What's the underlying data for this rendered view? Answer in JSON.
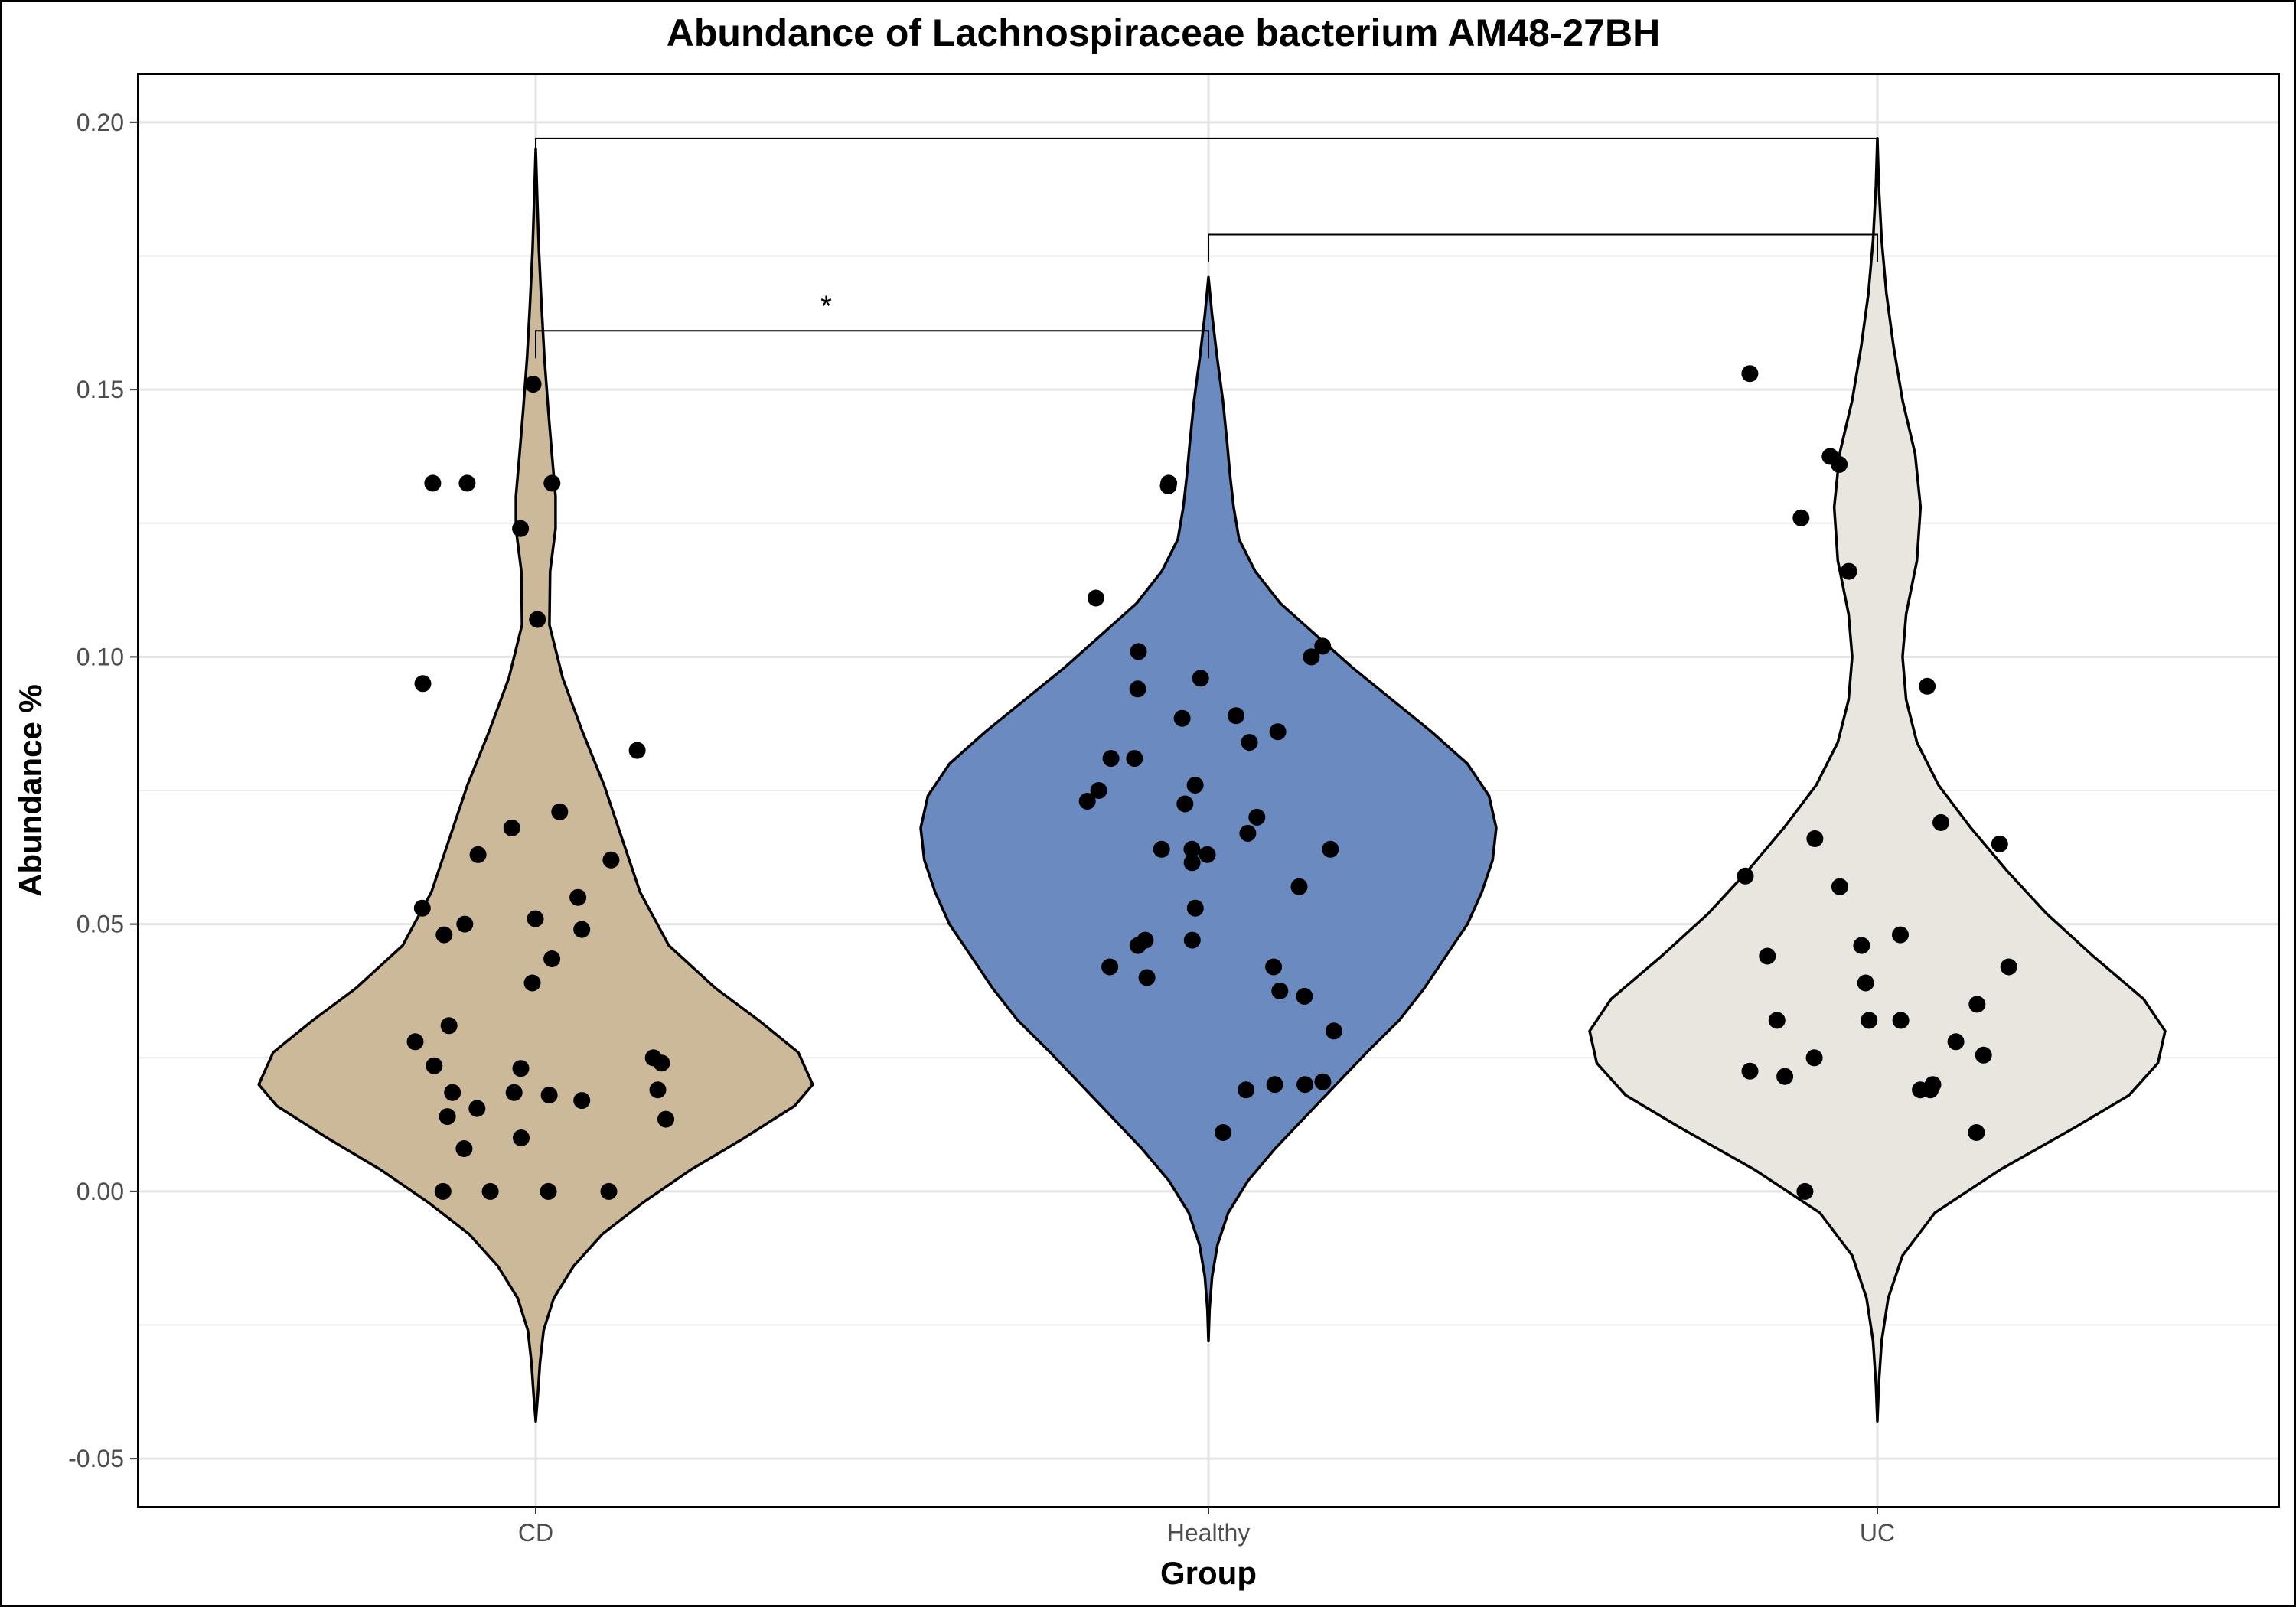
{
  "chart_data": {
    "type": "violin",
    "title": "Abundance of Lachnospiraceae bacterium AM48-27BH",
    "xlabel": "Group",
    "ylabel": "Abundance %",
    "categories": [
      "CD",
      "Healthy",
      "UC"
    ],
    "y_ticks": [
      "-0.05",
      "0.00",
      "0.05",
      "0.10",
      "0.15",
      "0.20"
    ],
    "ylim": [
      -0.059,
      0.209
    ],
    "grid": true,
    "colors": {
      "CD": "#cbb99a",
      "Healthy": "#6b8abf",
      "UC": "#e8e6df"
    },
    "violins": [
      {
        "group": "CD",
        "y_min": -0.043,
        "y_max": 0.195,
        "profile": [
          [
            -0.043,
            0
          ],
          [
            -0.038,
            0.006
          ],
          [
            -0.032,
            0.012
          ],
          [
            -0.026,
            0.022
          ],
          [
            -0.02,
            0.05
          ],
          [
            -0.014,
            0.105
          ],
          [
            -0.008,
            0.185
          ],
          [
            -0.002,
            0.3
          ],
          [
            0.004,
            0.43
          ],
          [
            0.01,
            0.58
          ],
          [
            0.016,
            0.72
          ],
          [
            0.02,
            0.77
          ],
          [
            0.026,
            0.73
          ],
          [
            0.032,
            0.62
          ],
          [
            0.038,
            0.5
          ],
          [
            0.046,
            0.37
          ],
          [
            0.056,
            0.29
          ],
          [
            0.066,
            0.24
          ],
          [
            0.076,
            0.19
          ],
          [
            0.086,
            0.13
          ],
          [
            0.096,
            0.075
          ],
          [
            0.106,
            0.038
          ],
          [
            0.116,
            0.04
          ],
          [
            0.124,
            0.055
          ],
          [
            0.13,
            0.055
          ],
          [
            0.138,
            0.045
          ],
          [
            0.146,
            0.035
          ],
          [
            0.156,
            0.024
          ],
          [
            0.166,
            0.016
          ],
          [
            0.176,
            0.009
          ],
          [
            0.186,
            0.004
          ],
          [
            0.195,
            0
          ]
        ],
        "points": [
          0.151,
          0.1325,
          0.1325,
          0.1325,
          0.124,
          0.107,
          0.095,
          0.0825,
          0.071,
          0.068,
          0.063,
          0.062,
          0.055,
          0.053,
          0.051,
          0.05,
          0.049,
          0.048,
          0.0435,
          0.039,
          0.031,
          0.028,
          0.025,
          0.024,
          0.0235,
          0.023,
          0.019,
          0.0185,
          0.0185,
          0.018,
          0.017,
          0.0155,
          0.014,
          0.0135,
          0.01,
          0.008,
          0.0,
          0.0,
          0.0,
          0.0
        ]
      },
      {
        "group": "Healthy",
        "y_min": -0.028,
        "y_max": 0.171,
        "profile": [
          [
            -0.028,
            0
          ],
          [
            -0.022,
            0.003
          ],
          [
            -0.016,
            0.01
          ],
          [
            -0.01,
            0.025
          ],
          [
            -0.004,
            0.055
          ],
          [
            0.002,
            0.11
          ],
          [
            0.008,
            0.185
          ],
          [
            0.014,
            0.27
          ],
          [
            0.02,
            0.355
          ],
          [
            0.026,
            0.44
          ],
          [
            0.032,
            0.53
          ],
          [
            0.038,
            0.6
          ],
          [
            0.044,
            0.66
          ],
          [
            0.05,
            0.72
          ],
          [
            0.056,
            0.76
          ],
          [
            0.062,
            0.79
          ],
          [
            0.068,
            0.8
          ],
          [
            0.074,
            0.78
          ],
          [
            0.08,
            0.72
          ],
          [
            0.086,
            0.62
          ],
          [
            0.092,
            0.51
          ],
          [
            0.098,
            0.4
          ],
          [
            0.104,
            0.3
          ],
          [
            0.11,
            0.2
          ],
          [
            0.116,
            0.13
          ],
          [
            0.122,
            0.085
          ],
          [
            0.128,
            0.07
          ],
          [
            0.134,
            0.06
          ],
          [
            0.14,
            0.052
          ],
          [
            0.148,
            0.04
          ],
          [
            0.156,
            0.024
          ],
          [
            0.164,
            0.01
          ],
          [
            0.171,
            0
          ]
        ],
        "points": [
          0.1325,
          0.132,
          0.111,
          0.102,
          0.101,
          0.1,
          0.096,
          0.094,
          0.089,
          0.0885,
          0.086,
          0.084,
          0.081,
          0.081,
          0.076,
          0.075,
          0.073,
          0.0725,
          0.07,
          0.067,
          0.064,
          0.064,
          0.064,
          0.063,
          0.0615,
          0.057,
          0.053,
          0.047,
          0.047,
          0.046,
          0.042,
          0.042,
          0.04,
          0.0375,
          0.0365,
          0.03,
          0.0205,
          0.02,
          0.02,
          0.019,
          0.011
        ]
      },
      {
        "group": "UC",
        "y_min": -0.043,
        "y_max": 0.197,
        "profile": [
          [
            -0.043,
            0
          ],
          [
            -0.036,
            0.004
          ],
          [
            -0.028,
            0.012
          ],
          [
            -0.02,
            0.03
          ],
          [
            -0.012,
            0.07
          ],
          [
            -0.004,
            0.16
          ],
          [
            0.004,
            0.34
          ],
          [
            0.012,
            0.55
          ],
          [
            0.018,
            0.7
          ],
          [
            0.024,
            0.78
          ],
          [
            0.03,
            0.8
          ],
          [
            0.036,
            0.74
          ],
          [
            0.044,
            0.6
          ],
          [
            0.052,
            0.47
          ],
          [
            0.06,
            0.36
          ],
          [
            0.068,
            0.26
          ],
          [
            0.076,
            0.17
          ],
          [
            0.084,
            0.11
          ],
          [
            0.092,
            0.08
          ],
          [
            0.1,
            0.07
          ],
          [
            0.108,
            0.08
          ],
          [
            0.118,
            0.11
          ],
          [
            0.128,
            0.12
          ],
          [
            0.138,
            0.105
          ],
          [
            0.148,
            0.07
          ],
          [
            0.158,
            0.045
          ],
          [
            0.168,
            0.025
          ],
          [
            0.178,
            0.012
          ],
          [
            0.188,
            0.004
          ],
          [
            0.197,
            0
          ]
        ],
        "points": [
          0.153,
          0.1375,
          0.136,
          0.126,
          0.116,
          0.0945,
          0.069,
          0.066,
          0.065,
          0.059,
          0.057,
          0.048,
          0.046,
          0.044,
          0.042,
          0.039,
          0.035,
          0.032,
          0.032,
          0.032,
          0.028,
          0.0255,
          0.025,
          0.0225,
          0.0215,
          0.02,
          0.019,
          0.019,
          0.011,
          0.0
        ]
      }
    ],
    "comparisons": [
      {
        "from": "CD",
        "to": "Healthy",
        "y": 0.161,
        "label": "*"
      },
      {
        "from": "Healthy",
        "to": "UC",
        "y": 0.179,
        "label": ""
      },
      {
        "from": "CD",
        "to": "UC",
        "y": 0.197,
        "label": ""
      }
    ]
  }
}
